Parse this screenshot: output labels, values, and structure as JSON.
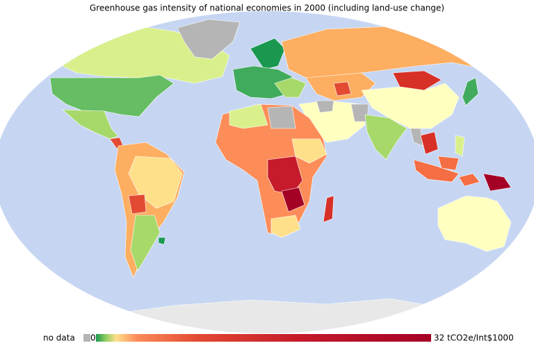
{
  "title": "Greenhouse gas intensity of national economies in 2000 (including land-use change)",
  "legend": {
    "no_data": "no data",
    "min": "0",
    "max": "32 tCO2e/Int$1000"
  }
}
